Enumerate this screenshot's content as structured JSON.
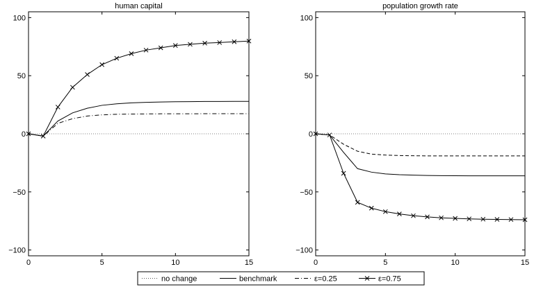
{
  "chart_data": [
    {
      "type": "line",
      "title": "human capital",
      "xlim": [
        0,
        15
      ],
      "ylim": [
        -105,
        105
      ],
      "xticks": [
        "0",
        "5",
        "10",
        "15"
      ],
      "yticks": [
        "−100",
        "−50",
        "0",
        "50",
        "100"
      ],
      "grid": false,
      "x": [
        0,
        1,
        2,
        3,
        4,
        5,
        6,
        7,
        8,
        9,
        10,
        11,
        12,
        13,
        14,
        15
      ],
      "series": [
        {
          "name": "no change",
          "style": "dotted",
          "values": [
            0,
            0,
            0,
            0,
            0,
            0,
            0,
            0,
            0,
            0,
            0,
            0,
            0,
            0,
            0,
            0
          ]
        },
        {
          "name": "benchmark",
          "style": "solid",
          "values": [
            0,
            -2,
            11,
            18,
            22,
            24.5,
            25.8,
            26.6,
            27.1,
            27.4,
            27.6,
            27.7,
            27.8,
            27.8,
            27.9,
            27.9
          ]
        },
        {
          "name": "ε=0.25",
          "style": "dashdot",
          "values": [
            0,
            -2,
            9,
            13,
            15.3,
            16.3,
            16.8,
            17.0,
            17.1,
            17.2,
            17.2,
            17.2,
            17.3,
            17.3,
            17.3,
            17.3
          ]
        },
        {
          "name": "ε=0.75",
          "style": "solid-x",
          "values": [
            0,
            -2,
            23,
            40,
            51,
            59.5,
            65,
            69,
            72,
            74,
            76,
            77,
            78,
            78.5,
            79.2,
            79.8
          ]
        }
      ]
    },
    {
      "type": "line",
      "title": "population growth rate",
      "xlim": [
        0,
        15
      ],
      "ylim": [
        -105,
        105
      ],
      "xticks": [
        "0",
        "5",
        "10",
        "15"
      ],
      "yticks": [
        "−100",
        "−50",
        "0",
        "50",
        "100"
      ],
      "grid": false,
      "x": [
        0,
        1,
        2,
        3,
        4,
        5,
        6,
        7,
        8,
        9,
        10,
        11,
        12,
        13,
        14,
        15
      ],
      "series": [
        {
          "name": "no change",
          "style": "dotted",
          "values": [
            0,
            0,
            0,
            0,
            0,
            0,
            0,
            0,
            0,
            0,
            0,
            0,
            0,
            0,
            0,
            0
          ]
        },
        {
          "name": "benchmark",
          "style": "solid",
          "values": [
            0,
            -1,
            -16,
            -30,
            -33,
            -34.5,
            -35.2,
            -35.6,
            -35.9,
            -36,
            -36.1,
            -36.2,
            -36.2,
            -36.2,
            -36.2,
            -36.2
          ]
        },
        {
          "name": "ε=0.25",
          "style": "dashed",
          "values": [
            0,
            -1,
            -9,
            -15,
            -17.5,
            -18.3,
            -18.7,
            -18.9,
            -19,
            -19,
            -19,
            -19,
            -19,
            -19,
            -19,
            -19
          ]
        },
        {
          "name": "ε=0.75",
          "style": "solid-x",
          "values": [
            0,
            -1,
            -34,
            -59,
            -64,
            -67,
            -69,
            -70.5,
            -71.5,
            -72.3,
            -72.8,
            -73.2,
            -73.5,
            -73.7,
            -73.8,
            -74
          ]
        }
      ]
    }
  ],
  "legend": {
    "placement": "bottom-center",
    "items": [
      "no change",
      "benchmark",
      "ε=0.25",
      "ε=0.75"
    ]
  }
}
